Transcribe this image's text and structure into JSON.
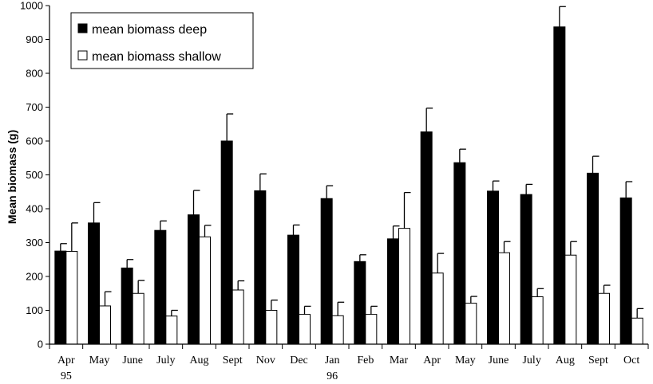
{
  "chart_data": {
    "type": "bar",
    "title": "",
    "ylabel": "Mean biomass (g)",
    "xlabel": "",
    "ylim": [
      0,
      1000
    ],
    "yticks": [
      0,
      100,
      200,
      300,
      400,
      500,
      600,
      700,
      800,
      900,
      1000
    ],
    "grid": false,
    "legend_position": "top-left",
    "categories": [
      "Apr",
      "May",
      "June",
      "July",
      "Aug",
      "Sept",
      "Nov",
      "Dec",
      "Jan",
      "Feb",
      "Mar",
      "Apr",
      "May",
      "June",
      "July",
      "Aug",
      "Sept",
      "Oct"
    ],
    "year_labels": [
      {
        "category_index": 0,
        "label": "95"
      },
      {
        "category_index": 8,
        "label": "96"
      }
    ],
    "series": [
      {
        "name": "mean biomass deep",
        "color": "#000000",
        "values": [
          275,
          358,
          225,
          336,
          382,
          600,
          453,
          322,
          430,
          244,
          311,
          627,
          536,
          452,
          442,
          937,
          505,
          432
        ],
        "error": [
          22,
          60,
          25,
          28,
          72,
          80,
          50,
          30,
          38,
          20,
          38,
          70,
          40,
          30,
          30,
          60,
          50,
          48
        ]
      },
      {
        "name": "mean biomass shallow",
        "color": "#ffffff",
        "values": [
          274,
          113,
          150,
          83,
          317,
          160,
          100,
          88,
          84,
          88,
          342,
          210,
          121,
          270,
          140,
          263,
          150,
          77
        ],
        "error": [
          84,
          42,
          38,
          17,
          34,
          27,
          30,
          24,
          40,
          24,
          106,
          58,
          20,
          33,
          24,
          40,
          24,
          28
        ]
      }
    ]
  }
}
